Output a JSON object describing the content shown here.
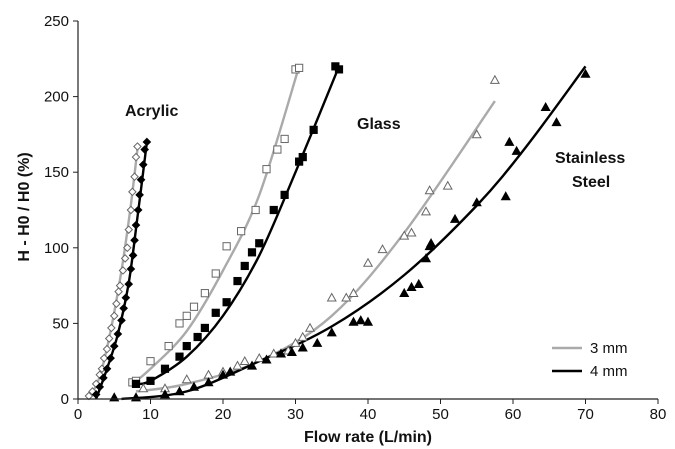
{
  "chart_data": {
    "type": "scatter",
    "xlabel": "Flow rate (L/min)",
    "ylabel": "H - H0 / H0 (%)",
    "xlim": [
      0,
      80
    ],
    "ylim": [
      0,
      250
    ],
    "xticks": [
      "0",
      "10",
      "20",
      "30",
      "40",
      "50",
      "60",
      "70",
      "80"
    ],
    "yticks": [
      "0",
      "50",
      "100",
      "150",
      "200",
      "250"
    ],
    "grid": false,
    "legend_position": "bottom-right",
    "legend": [
      {
        "label": "3 mm",
        "color": "#aaaaaa"
      },
      {
        "label": "4 mm",
        "color": "#000000"
      }
    ],
    "annotations": [
      "Acrylic",
      "Glass",
      "Stainless",
      "Steel"
    ],
    "series": [
      {
        "material": "Acrylic",
        "tube": "3 mm",
        "marker": "open-diamond",
        "color": "#aaaaaa",
        "points": [
          [
            1.5,
            2
          ],
          [
            2,
            5
          ],
          [
            2.5,
            10
          ],
          [
            3,
            16
          ],
          [
            3.3,
            20
          ],
          [
            3.6,
            27
          ],
          [
            4,
            33
          ],
          [
            4.3,
            40
          ],
          [
            4.6,
            47
          ],
          [
            5,
            55
          ],
          [
            5.3,
            63
          ],
          [
            5.6,
            71
          ],
          [
            5.8,
            75
          ],
          [
            6.2,
            85
          ],
          [
            6.5,
            93
          ],
          [
            6.8,
            100
          ],
          [
            7,
            112
          ],
          [
            7.3,
            125
          ],
          [
            7.5,
            137
          ],
          [
            7.8,
            147
          ],
          [
            8,
            160
          ],
          [
            8.2,
            167
          ]
        ],
        "fit": [
          [
            1.5,
            0
          ],
          [
            3,
            15
          ],
          [
            4.5,
            45
          ],
          [
            6,
            85
          ],
          [
            7.2,
            125
          ],
          [
            8.2,
            165
          ]
        ]
      },
      {
        "material": "Acrylic",
        "tube": "4 mm",
        "marker": "filled-diamond",
        "color": "#000000",
        "points": [
          [
            2.5,
            3
          ],
          [
            3,
            8
          ],
          [
            3.5,
            14
          ],
          [
            4,
            20
          ],
          [
            4.5,
            27
          ],
          [
            5,
            35
          ],
          [
            5.5,
            43
          ],
          [
            6,
            52
          ],
          [
            6.3,
            60
          ],
          [
            6.6,
            67
          ],
          [
            7,
            76
          ],
          [
            7.3,
            86
          ],
          [
            7.6,
            95
          ],
          [
            7.8,
            105
          ],
          [
            8,
            115
          ],
          [
            8.3,
            125
          ],
          [
            8.5,
            135
          ],
          [
            8.7,
            145
          ],
          [
            9,
            155
          ],
          [
            9.2,
            165
          ],
          [
            9.5,
            170
          ]
        ],
        "fit": [
          [
            2.5,
            0
          ],
          [
            4,
            20
          ],
          [
            5.5,
            43
          ],
          [
            7,
            77
          ],
          [
            8.2,
            120
          ],
          [
            9.5,
            170
          ]
        ]
      },
      {
        "material": "Glass",
        "tube": "3 mm",
        "marker": "open-square",
        "color": "#aaaaaa",
        "points": [
          [
            7.5,
            11
          ],
          [
            8,
            12
          ],
          [
            10,
            25
          ],
          [
            12.5,
            35
          ],
          [
            14,
            50
          ],
          [
            15,
            55
          ],
          [
            16,
            61
          ],
          [
            17.5,
            70
          ],
          [
            19,
            83
          ],
          [
            20.5,
            101
          ],
          [
            22.5,
            111
          ],
          [
            24.5,
            125
          ],
          [
            26,
            152
          ],
          [
            27.5,
            165
          ],
          [
            28.5,
            172
          ],
          [
            30,
            218
          ],
          [
            30.5,
            219
          ]
        ],
        "fit": [
          [
            7.5,
            10
          ],
          [
            10,
            20
          ],
          [
            15,
            45
          ],
          [
            20,
            85
          ],
          [
            25,
            135
          ],
          [
            30.5,
            220
          ]
        ]
      },
      {
        "material": "Glass",
        "tube": "4 mm",
        "marker": "filled-square",
        "color": "#000000",
        "points": [
          [
            8,
            10
          ],
          [
            10,
            12
          ],
          [
            12,
            20
          ],
          [
            14,
            28
          ],
          [
            15,
            35
          ],
          [
            16.5,
            41
          ],
          [
            17.5,
            47
          ],
          [
            19,
            57
          ],
          [
            20.5,
            64
          ],
          [
            22,
            78
          ],
          [
            23,
            88
          ],
          [
            24,
            97
          ],
          [
            25,
            103
          ],
          [
            27,
            125
          ],
          [
            28.5,
            135
          ],
          [
            30.5,
            157
          ],
          [
            31,
            160
          ],
          [
            32.5,
            178
          ],
          [
            35.5,
            220
          ],
          [
            36,
            218
          ]
        ],
        "fit": [
          [
            8,
            10
          ],
          [
            10,
            12
          ],
          [
            15,
            28
          ],
          [
            20,
            55
          ],
          [
            25,
            95
          ],
          [
            30,
            150
          ],
          [
            36,
            220
          ]
        ]
      },
      {
        "material": "Stainless Steel",
        "tube": "3 mm",
        "marker": "open-triangle",
        "color": "#aaaaaa",
        "points": [
          [
            9,
            7
          ],
          [
            12,
            7
          ],
          [
            15,
            13
          ],
          [
            18,
            16
          ],
          [
            20,
            18
          ],
          [
            22,
            22
          ],
          [
            23,
            25
          ],
          [
            25,
            27
          ],
          [
            27,
            30
          ],
          [
            29,
            32
          ],
          [
            30,
            37
          ],
          [
            31,
            41
          ],
          [
            32,
            47
          ],
          [
            35,
            67
          ],
          [
            37,
            67
          ],
          [
            38,
            70
          ],
          [
            40,
            90
          ],
          [
            42,
            99
          ],
          [
            45,
            108
          ],
          [
            46,
            110
          ],
          [
            48,
            124
          ],
          [
            48.5,
            138
          ],
          [
            51,
            141
          ],
          [
            55,
            175
          ],
          [
            57.5,
            211
          ]
        ],
        "fit": [
          [
            8,
            5
          ],
          [
            15,
            10
          ],
          [
            25,
            25
          ],
          [
            35,
            55
          ],
          [
            45,
            110
          ],
          [
            57.5,
            197
          ]
        ]
      },
      {
        "material": "Stainless Steel",
        "tube": "4 mm",
        "marker": "filled-triangle",
        "color": "#000000",
        "points": [
          [
            5,
            1
          ],
          [
            8,
            1
          ],
          [
            12,
            3
          ],
          [
            14,
            5
          ],
          [
            16,
            8
          ],
          [
            18,
            11
          ],
          [
            20,
            16
          ],
          [
            21,
            18
          ],
          [
            24,
            22
          ],
          [
            26,
            26
          ],
          [
            28,
            30
          ],
          [
            29.5,
            31
          ],
          [
            31,
            34
          ],
          [
            33,
            37
          ],
          [
            35,
            44
          ],
          [
            38,
            51
          ],
          [
            39,
            52
          ],
          [
            40,
            51
          ],
          [
            45,
            70
          ],
          [
            46,
            74
          ],
          [
            47,
            76
          ],
          [
            48,
            93
          ],
          [
            48.5,
            101
          ],
          [
            48.7,
            103
          ],
          [
            52,
            119
          ],
          [
            55,
            130
          ],
          [
            59,
            134
          ],
          [
            59.5,
            170
          ],
          [
            60.5,
            164
          ],
          [
            64.5,
            193
          ],
          [
            66,
            183
          ],
          [
            70,
            215
          ]
        ],
        "fit": [
          [
            6,
            0
          ],
          [
            15,
            5
          ],
          [
            25,
            25
          ],
          [
            35,
            48
          ],
          [
            45,
            82
          ],
          [
            55,
            128
          ],
          [
            62,
            168
          ],
          [
            70,
            220
          ]
        ]
      }
    ]
  }
}
